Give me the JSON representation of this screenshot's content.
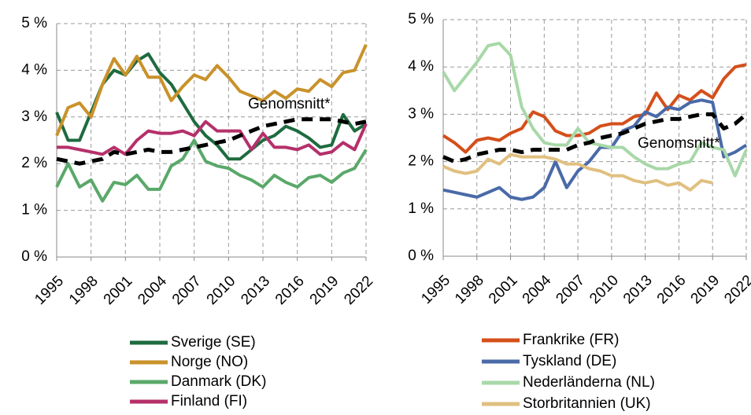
{
  "chart_data": [
    {
      "type": "line",
      "x": [
        1995,
        1996,
        1997,
        1998,
        1999,
        2000,
        2001,
        2002,
        2003,
        2004,
        2005,
        2006,
        2007,
        2008,
        2009,
        2010,
        2011,
        2012,
        2013,
        2014,
        2015,
        2016,
        2017,
        2018,
        2019,
        2020,
        2021,
        2022
      ],
      "xlim": [
        1995,
        2022
      ],
      "xticks": [
        1995,
        1998,
        2001,
        2004,
        2007,
        2010,
        2013,
        2016,
        2019,
        2022
      ],
      "ylim": [
        0,
        5
      ],
      "yticks": [
        {
          "value": 0,
          "label": "0 %"
        },
        {
          "value": 1,
          "label": "1 %"
        },
        {
          "value": 2,
          "label": "2 %"
        },
        {
          "value": 3,
          "label": "3 %"
        },
        {
          "value": 4,
          "label": "4 %"
        },
        {
          "value": 5,
          "label": "5 %"
        }
      ],
      "grid": true,
      "series": [
        {
          "name": "Sverige (SE)",
          "color": "#1e6b3f",
          "values": [
            3.1,
            2.5,
            2.5,
            3.1,
            3.7,
            4.0,
            3.9,
            4.2,
            4.35,
            3.95,
            3.7,
            3.3,
            2.9,
            2.6,
            2.4,
            2.1,
            2.1,
            2.3,
            2.5,
            2.6,
            2.8,
            2.7,
            2.55,
            2.35,
            2.4,
            3.05,
            2.7,
            2.85
          ]
        },
        {
          "name": "Norge (NO)",
          "color": "#c9922a",
          "values": [
            2.6,
            3.2,
            3.3,
            3.0,
            3.7,
            4.25,
            3.9,
            4.3,
            3.85,
            3.85,
            3.35,
            3.65,
            3.9,
            3.8,
            4.1,
            3.85,
            3.55,
            3.45,
            3.35,
            3.55,
            3.4,
            3.6,
            3.55,
            3.8,
            3.65,
            3.95,
            4.0,
            4.55
          ]
        },
        {
          "name": "Danmark (DK)",
          "color": "#5aa86a",
          "values": [
            1.5,
            2.0,
            1.5,
            1.65,
            1.2,
            1.6,
            1.55,
            1.75,
            1.45,
            1.45,
            1.95,
            2.1,
            2.5,
            2.05,
            1.95,
            1.9,
            1.75,
            1.65,
            1.5,
            1.75,
            1.6,
            1.5,
            1.7,
            1.75,
            1.6,
            1.8,
            1.9,
            2.3
          ]
        },
        {
          "name": "Finland (FI)",
          "color": "#b5306a",
          "values": [
            2.35,
            2.35,
            2.3,
            2.25,
            2.2,
            2.35,
            2.2,
            2.5,
            2.7,
            2.65,
            2.65,
            2.7,
            2.6,
            2.9,
            2.7,
            2.7,
            2.7,
            2.3,
            2.65,
            2.35,
            2.35,
            2.3,
            2.4,
            2.2,
            2.25,
            2.45,
            2.3,
            2.85
          ]
        }
      ],
      "average": {
        "label": "Genomsnitt*",
        "color": "#000000",
        "values": [
          2.1,
          2.05,
          2.0,
          2.05,
          2.1,
          2.25,
          2.2,
          2.25,
          2.3,
          2.25,
          2.25,
          2.3,
          2.35,
          2.4,
          2.45,
          2.5,
          2.6,
          2.7,
          2.8,
          2.85,
          2.9,
          2.95,
          2.95,
          2.95,
          2.95,
          2.9,
          2.85,
          2.9
        ]
      }
    },
    {
      "type": "line",
      "x": [
        1995,
        1996,
        1997,
        1998,
        1999,
        2000,
        2001,
        2002,
        2003,
        2004,
        2005,
        2006,
        2007,
        2008,
        2009,
        2010,
        2011,
        2012,
        2013,
        2014,
        2015,
        2016,
        2017,
        2018,
        2019,
        2020,
        2021,
        2022
      ],
      "xlim": [
        1995,
        2022
      ],
      "xticks": [
        1995,
        1998,
        2001,
        2004,
        2007,
        2010,
        2013,
        2016,
        2019,
        2022
      ],
      "ylim": [
        0,
        5
      ],
      "yticks": [
        {
          "value": 0,
          "label": "0 %"
        },
        {
          "value": 1,
          "label": "1 %"
        },
        {
          "value": 2,
          "label": "2 %"
        },
        {
          "value": 3,
          "label": "3 %"
        },
        {
          "value": 4,
          "label": "4 %"
        },
        {
          "value": 5,
          "label": "5 %"
        }
      ],
      "grid": true,
      "series": [
        {
          "name": "Frankrike (FR)",
          "color": "#d44f1a",
          "values": [
            2.55,
            2.4,
            2.2,
            2.45,
            2.5,
            2.45,
            2.6,
            2.7,
            3.05,
            2.95,
            2.65,
            2.55,
            2.55,
            2.6,
            2.75,
            2.8,
            2.8,
            2.95,
            3.0,
            3.45,
            3.1,
            3.4,
            3.3,
            3.5,
            3.35,
            3.75,
            4.0,
            4.05
          ]
        },
        {
          "name": "Tyskland (DE)",
          "color": "#4a6aa8",
          "values": [
            1.4,
            1.35,
            1.3,
            1.25,
            1.35,
            1.45,
            1.25,
            1.2,
            1.25,
            1.45,
            2.0,
            1.45,
            1.8,
            2.0,
            2.3,
            2.3,
            2.65,
            2.75,
            3.05,
            2.95,
            3.15,
            3.1,
            3.25,
            3.3,
            3.25,
            2.1,
            2.2,
            2.35
          ]
        },
        {
          "name": "Nederländerna (NL)",
          "color": "#a8d8a8",
          "values": [
            3.9,
            3.5,
            3.8,
            4.1,
            4.45,
            4.5,
            4.25,
            3.15,
            2.7,
            2.4,
            2.35,
            2.35,
            2.7,
            2.4,
            2.35,
            2.3,
            2.3,
            2.1,
            1.95,
            1.85,
            1.85,
            1.95,
            2.0,
            2.4,
            2.3,
            2.25,
            1.7,
            2.25
          ]
        },
        {
          "name": "Storbritannien (UK)",
          "color": "#e0c080",
          "values": [
            1.9,
            1.8,
            1.75,
            1.8,
            2.05,
            1.95,
            2.15,
            2.1,
            2.1,
            2.1,
            2.05,
            1.95,
            1.95,
            1.85,
            1.8,
            1.7,
            1.7,
            1.6,
            1.55,
            1.6,
            1.5,
            1.55,
            1.4,
            1.6,
            1.55,
            null,
            null,
            null
          ]
        }
      ],
      "average": {
        "label": "Genomsnitt*",
        "color": "#000000",
        "values": [
          2.1,
          2.0,
          2.05,
          2.15,
          2.2,
          2.25,
          2.25,
          2.2,
          2.25,
          2.25,
          2.25,
          2.25,
          2.35,
          2.4,
          2.5,
          2.55,
          2.6,
          2.7,
          2.8,
          2.85,
          2.9,
          2.9,
          2.95,
          3.0,
          3.0,
          2.7,
          2.8,
          3.0
        ]
      }
    }
  ]
}
